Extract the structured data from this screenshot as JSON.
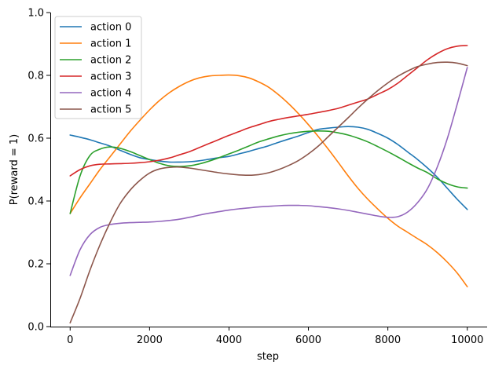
{
  "chart_data": {
    "type": "line",
    "title": "",
    "xlabel": "step",
    "ylabel": "P(reward = 1)",
    "xlim": [
      -500,
      10500
    ],
    "ylim": [
      0,
      1
    ],
    "xticks": [
      0,
      2000,
      4000,
      6000,
      8000,
      10000
    ],
    "xtick_labels": [
      "0",
      "2000",
      "4000",
      "6000",
      "8000",
      "10000"
    ],
    "yticks": [
      0,
      0.2,
      0.4,
      0.6,
      0.8,
      1.0
    ],
    "ytick_labels": [
      "0.0",
      "0.2",
      "0.4",
      "0.6",
      "0.8",
      "1.0"
    ],
    "grid": false,
    "legend_position": "upper-left",
    "x": [
      0,
      250,
      500,
      750,
      1000,
      1250,
      1500,
      1750,
      2000,
      2250,
      2500,
      2750,
      3000,
      3250,
      3500,
      3750,
      4000,
      4250,
      4500,
      4750,
      5000,
      5250,
      5500,
      5750,
      6000,
      6250,
      6500,
      6750,
      7000,
      7250,
      7500,
      7750,
      8000,
      8250,
      8500,
      8750,
      9000,
      9250,
      9500,
      9750,
      10000
    ],
    "series": [
      {
        "name": "action 0",
        "color": "#1f77b4",
        "values": [
          0.61,
          0.603,
          0.595,
          0.585,
          0.575,
          0.562,
          0.549,
          0.538,
          0.532,
          0.527,
          0.524,
          0.524,
          0.525,
          0.528,
          0.533,
          0.538,
          0.542,
          0.55,
          0.558,
          0.567,
          0.576,
          0.587,
          0.597,
          0.607,
          0.618,
          0.628,
          0.632,
          0.635,
          0.637,
          0.635,
          0.628,
          0.615,
          0.6,
          0.58,
          0.556,
          0.532,
          0.505,
          0.475,
          0.44,
          0.405,
          0.373
        ]
      },
      {
        "name": "action 1",
        "color": "#ff7f0e",
        "values": [
          0.36,
          0.41,
          0.455,
          0.5,
          0.54,
          0.58,
          0.62,
          0.656,
          0.69,
          0.72,
          0.745,
          0.765,
          0.781,
          0.792,
          0.798,
          0.8,
          0.801,
          0.799,
          0.792,
          0.779,
          0.762,
          0.738,
          0.71,
          0.678,
          0.643,
          0.605,
          0.565,
          0.523,
          0.48,
          0.44,
          0.405,
          0.374,
          0.345,
          0.32,
          0.3,
          0.28,
          0.26,
          0.235,
          0.205,
          0.17,
          0.127
        ]
      },
      {
        "name": "action 2",
        "color": "#2ca02c",
        "values": [
          0.36,
          0.48,
          0.545,
          0.565,
          0.572,
          0.568,
          0.558,
          0.545,
          0.532,
          0.52,
          0.512,
          0.51,
          0.512,
          0.518,
          0.527,
          0.538,
          0.55,
          0.562,
          0.575,
          0.588,
          0.598,
          0.607,
          0.614,
          0.619,
          0.622,
          0.623,
          0.622,
          0.617,
          0.61,
          0.6,
          0.588,
          0.573,
          0.557,
          0.54,
          0.522,
          0.505,
          0.49,
          0.47,
          0.455,
          0.445,
          0.441
        ]
      },
      {
        "name": "action 3",
        "color": "#d62728",
        "values": [
          0.48,
          0.5,
          0.512,
          0.517,
          0.518,
          0.519,
          0.52,
          0.522,
          0.525,
          0.53,
          0.537,
          0.547,
          0.557,
          0.57,
          0.583,
          0.596,
          0.609,
          0.621,
          0.633,
          0.643,
          0.653,
          0.66,
          0.666,
          0.671,
          0.676,
          0.682,
          0.688,
          0.695,
          0.705,
          0.715,
          0.725,
          0.74,
          0.755,
          0.775,
          0.8,
          0.825,
          0.85,
          0.87,
          0.885,
          0.893,
          0.895
        ]
      },
      {
        "name": "action 4",
        "color": "#9467bd",
        "values": [
          0.163,
          0.245,
          0.293,
          0.316,
          0.325,
          0.329,
          0.331,
          0.332,
          0.333,
          0.335,
          0.338,
          0.342,
          0.348,
          0.355,
          0.361,
          0.366,
          0.371,
          0.375,
          0.378,
          0.381,
          0.383,
          0.385,
          0.386,
          0.386,
          0.385,
          0.382,
          0.379,
          0.375,
          0.37,
          0.364,
          0.358,
          0.352,
          0.348,
          0.35,
          0.365,
          0.395,
          0.44,
          0.51,
          0.6,
          0.71,
          0.825
        ]
      },
      {
        "name": "action 5",
        "color": "#8c564b",
        "values": [
          0.012,
          0.09,
          0.18,
          0.26,
          0.33,
          0.39,
          0.433,
          0.465,
          0.489,
          0.502,
          0.507,
          0.508,
          0.505,
          0.5,
          0.495,
          0.49,
          0.486,
          0.483,
          0.482,
          0.484,
          0.49,
          0.5,
          0.513,
          0.529,
          0.55,
          0.575,
          0.605,
          0.635,
          0.665,
          0.696,
          0.725,
          0.752,
          0.776,
          0.797,
          0.814,
          0.828,
          0.836,
          0.841,
          0.842,
          0.839,
          0.831
        ]
      }
    ]
  }
}
